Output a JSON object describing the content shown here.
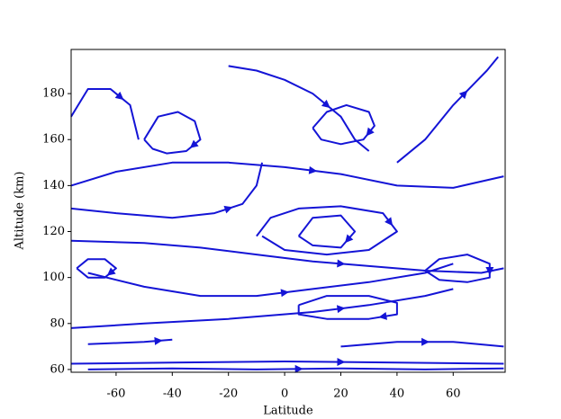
{
  "chart_data": {
    "type": "streamplot",
    "xlabel": "Latitude",
    "ylabel": "Altitude (km)",
    "color": "#1414d6",
    "xlim": [
      -76,
      78.5
    ],
    "ylim": [
      58.8,
      199.2
    ],
    "xticks": [
      -60,
      -40,
      -20,
      0,
      20,
      40,
      60
    ],
    "yticks": [
      60,
      80,
      100,
      120,
      140,
      160,
      180
    ],
    "streamlines": [
      {
        "x": [
          -76,
          -40,
          0,
          40,
          78
        ],
        "y": [
          62.5,
          63,
          63.5,
          63,
          62.5
        ]
      },
      {
        "x": [
          -70,
          -40,
          -10,
          20,
          50,
          78
        ],
        "y": [
          60,
          60.5,
          60,
          60.5,
          60,
          60.5
        ]
      },
      {
        "x": [
          -76,
          -50,
          -30,
          -10,
          10,
          30,
          50,
          70,
          78
        ],
        "y": [
          116,
          115,
          113,
          110,
          107,
          105,
          103,
          102,
          104
        ]
      },
      {
        "x": [
          -10,
          -5,
          5,
          20,
          35,
          40,
          30,
          15,
          0,
          -8
        ],
        "y": [
          118,
          126,
          130,
          131,
          128,
          120,
          112,
          110,
          112,
          118
        ]
      },
      {
        "x": [
          5,
          10,
          20,
          25,
          20,
          10,
          5
        ],
        "y": [
          118,
          126,
          127,
          120,
          113,
          114,
          118
        ]
      },
      {
        "x": [
          -76,
          -60,
          -40,
          -20,
          0,
          20,
          40,
          60,
          78
        ],
        "y": [
          140,
          146,
          150,
          150,
          148,
          145,
          140,
          139,
          144
        ]
      },
      {
        "x": [
          -50,
          -45,
          -38,
          -32,
          -30,
          -35,
          -42,
          -47,
          -50
        ],
        "y": [
          160,
          170,
          172,
          168,
          160,
          155,
          154,
          156,
          160
        ]
      },
      {
        "x": [
          10,
          15,
          22,
          30,
          32,
          28,
          20,
          13,
          10
        ],
        "y": [
          165,
          172,
          175,
          172,
          166,
          160,
          158,
          160,
          165
        ]
      },
      {
        "x": [
          5,
          15,
          30,
          40,
          40,
          30,
          15,
          5,
          5
        ],
        "y": [
          88,
          92,
          92,
          89,
          84,
          82,
          82,
          84,
          88
        ]
      },
      {
        "x": [
          -76,
          -50,
          -20,
          10,
          30,
          50,
          60
        ],
        "y": [
          78,
          80,
          82,
          85,
          88,
          92,
          95
        ]
      },
      {
        "x": [
          -70,
          -50,
          -30,
          -10,
          10,
          30,
          50,
          60
        ],
        "y": [
          102,
          96,
          92,
          92,
          95,
          98,
          102,
          106
        ]
      },
      {
        "x": [
          50,
          55,
          65,
          73,
          73,
          65,
          55,
          50
        ],
        "y": [
          103,
          108,
          110,
          106,
          100,
          98,
          99,
          103
        ]
      },
      {
        "x": [
          -74,
          -70,
          -64,
          -60,
          -64,
          -70,
          -74
        ],
        "y": [
          104,
          108,
          108,
          104,
          100,
          100,
          104
        ]
      },
      {
        "x": [
          -76,
          -70,
          -62,
          -55,
          -52
        ],
        "y": [
          170,
          182,
          182,
          175,
          160
        ]
      },
      {
        "x": [
          40,
          50,
          60,
          68,
          72,
          76
        ],
        "y": [
          150,
          160,
          175,
          185,
          190,
          196
        ]
      },
      {
        "x": [
          -76,
          -60,
          -40,
          -25,
          -15,
          -10,
          -8
        ],
        "y": [
          130,
          128,
          126,
          128,
          132,
          140,
          150
        ]
      },
      {
        "x": [
          -70,
          -50,
          -40
        ],
        "y": [
          71,
          72,
          73
        ]
      },
      {
        "x": [
          20,
          40,
          60,
          78
        ],
        "y": [
          70,
          72,
          72,
          70
        ]
      },
      {
        "x": [
          -20,
          -10,
          0,
          10,
          20,
          25,
          30
        ],
        "y": [
          192,
          190,
          186,
          180,
          170,
          160,
          155
        ]
      }
    ]
  }
}
